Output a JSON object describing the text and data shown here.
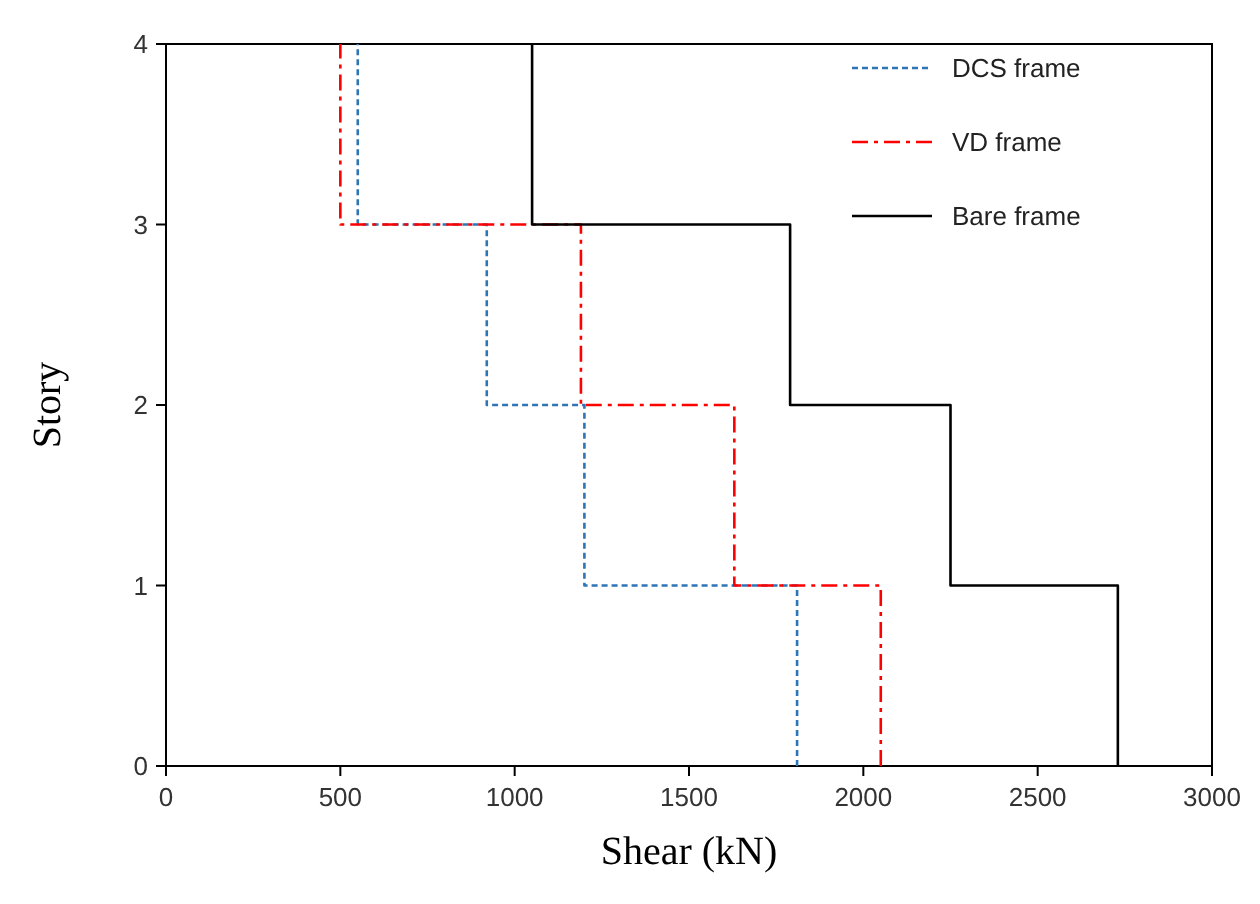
{
  "chart_data": {
    "type": "line",
    "xlabel": "Shear (kN)",
    "ylabel": "Story",
    "xlim": [
      0,
      3000
    ],
    "xticks": [
      0,
      500,
      1000,
      1500,
      2000,
      2500,
      3000
    ],
    "ylim": [
      0,
      4
    ],
    "yticks": [
      0,
      1,
      2,
      3,
      4
    ],
    "grid": false,
    "legend": "top right",
    "marker": "none",
    "series": [
      {
        "name": "DCS frame",
        "color": "#2e75b6",
        "line_style": "dotted",
        "x": [
          1810,
          1810,
          1200,
          1200,
          920,
          920,
          550,
          550
        ],
        "values": [
          0,
          1,
          1,
          2,
          2,
          3,
          3,
          4
        ]
      },
      {
        "name": "VD frame",
        "color": "#ff0000",
        "line_style": "dashed",
        "x": [
          2050,
          2050,
          1630,
          1630,
          1190,
          1190,
          500,
          500
        ],
        "values": [
          0,
          1,
          1,
          2,
          2,
          3,
          3,
          4
        ]
      },
      {
        "name": "Bare frame",
        "color": "#000000",
        "line_style": "solid",
        "x": [
          2730,
          2730,
          2250,
          2250,
          1790,
          1790,
          1050,
          1050
        ],
        "values": [
          0,
          1,
          1,
          2,
          2,
          3,
          3,
          4
        ]
      }
    ]
  }
}
